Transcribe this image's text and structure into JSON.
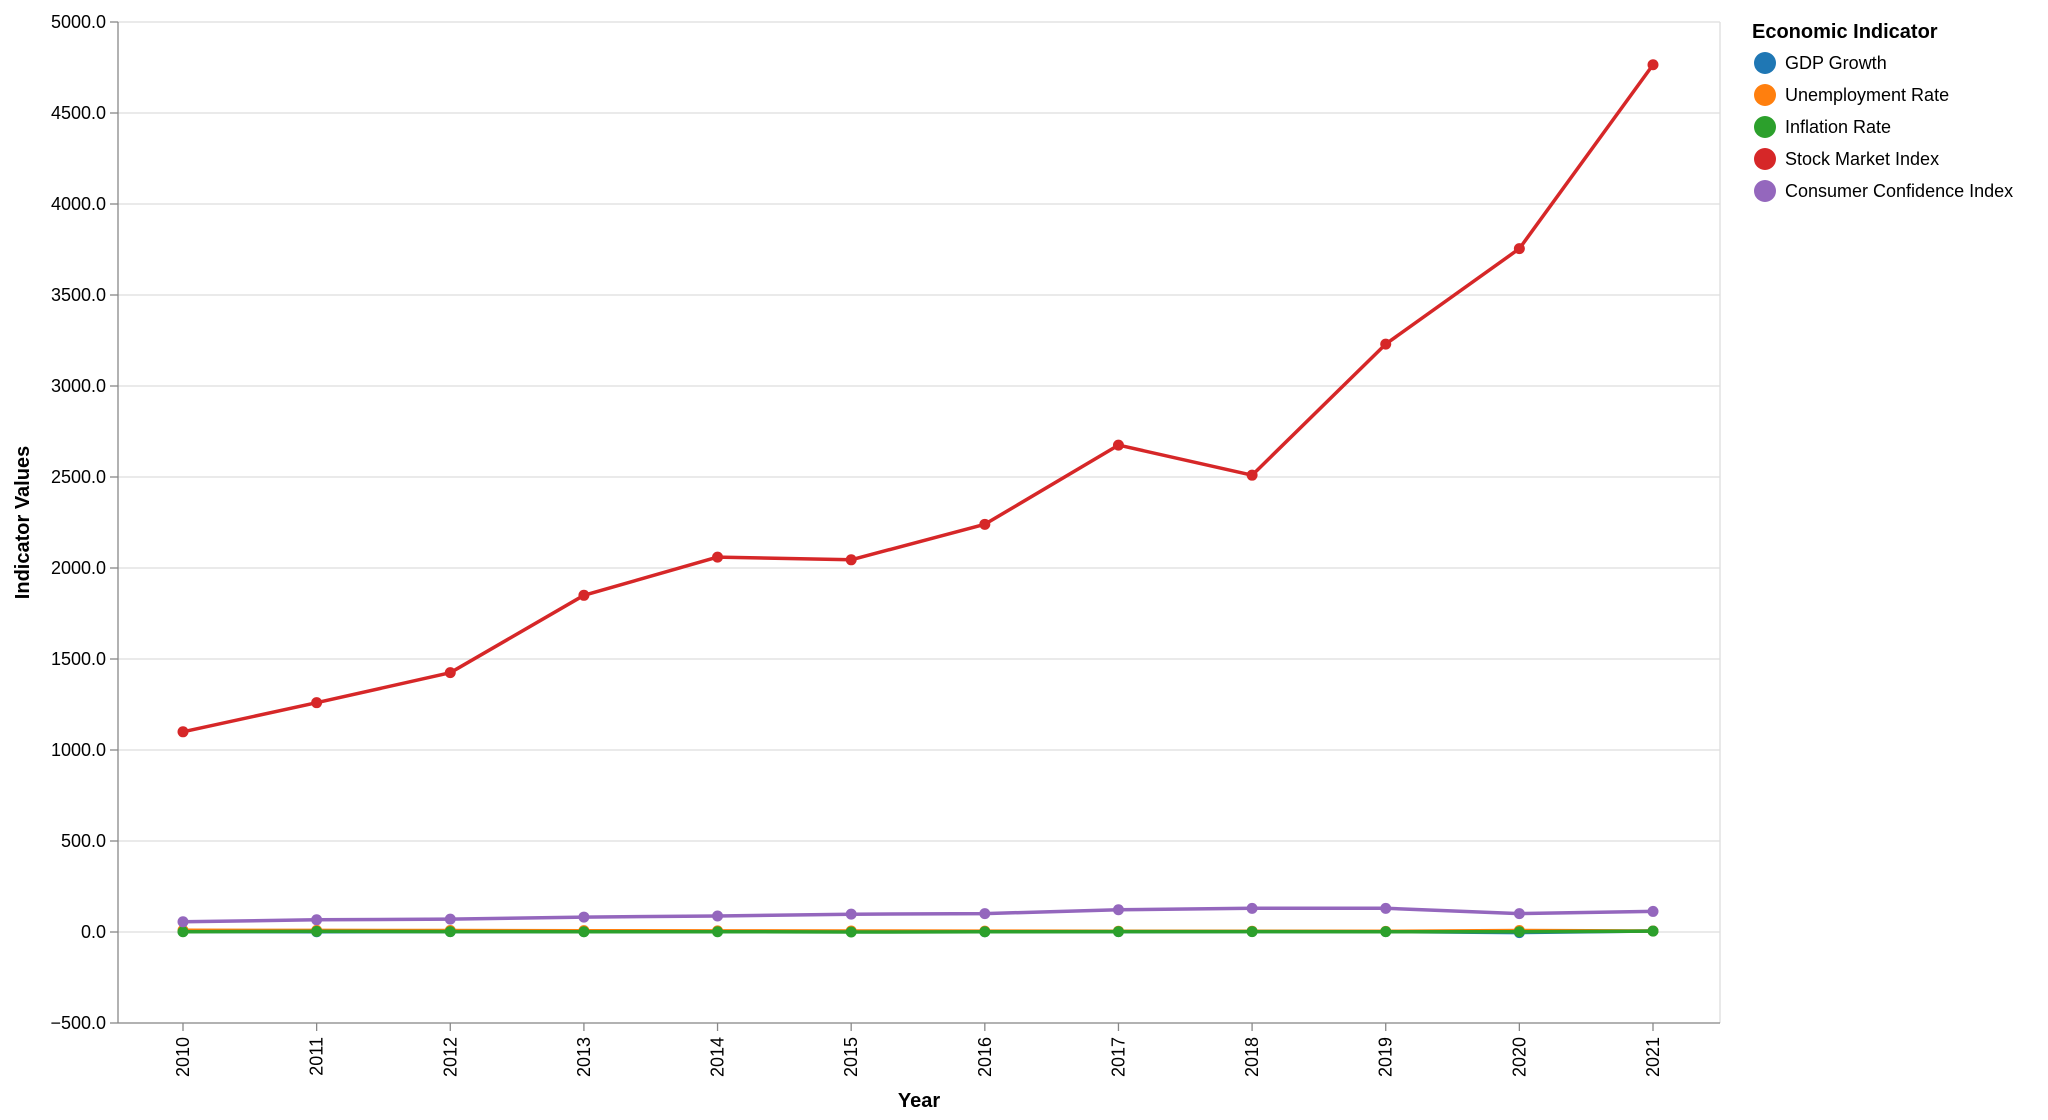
{
  "chart_data": {
    "type": "line",
    "xlabel": "Year",
    "ylabel": "Indicator Values",
    "x": [
      "2010",
      "2011",
      "2012",
      "2013",
      "2014",
      "2015",
      "2016",
      "2017",
      "2018",
      "2019",
      "2020",
      "2021"
    ],
    "ylim": [
      -500,
      5000
    ],
    "yticks": [
      -500,
      0,
      500,
      1000,
      1500,
      2000,
      2500,
      3000,
      3500,
      4000,
      4500,
      5000
    ],
    "ytick_labels": [
      "−500.0",
      "0.0",
      "500.0",
      "1000.0",
      "1500.0",
      "2000.0",
      "2500.0",
      "3000.0",
      "3500.0",
      "4000.0",
      "4500.0",
      "5000.0"
    ],
    "grid": true,
    "legend": {
      "title": "Economic Indicator",
      "position": "top-right"
    },
    "series": [
      {
        "name": "GDP Growth",
        "color": "#1f77b4",
        "values": [
          2.5,
          1.6,
          2.2,
          1.8,
          2.5,
          2.9,
          1.6,
          2.4,
          2.9,
          2.3,
          -3.4,
          5.7
        ]
      },
      {
        "name": "Unemployment Rate",
        "color": "#ff7f0e",
        "values": [
          9.6,
          8.9,
          8.1,
          7.4,
          6.2,
          5.3,
          4.9,
          4.4,
          3.9,
          3.7,
          8.1,
          5.4
        ]
      },
      {
        "name": "Inflation Rate",
        "color": "#2ca02c",
        "values": [
          1.6,
          3.2,
          2.1,
          1.5,
          1.6,
          0.1,
          1.3,
          2.1,
          2.4,
          1.8,
          1.2,
          4.7
        ]
      },
      {
        "name": "Stock Market Index",
        "color": "#d62728",
        "values": [
          1100,
          1260,
          1425,
          1850,
          2060,
          2045,
          2240,
          2675,
          2510,
          3230,
          3755,
          4765
        ]
      },
      {
        "name": "Consumer Confidence Index",
        "color": "#9467bd",
        "values": [
          56,
          67,
          71,
          82,
          88,
          98,
          101,
          122,
          130,
          130,
          101,
          113
        ]
      }
    ]
  }
}
